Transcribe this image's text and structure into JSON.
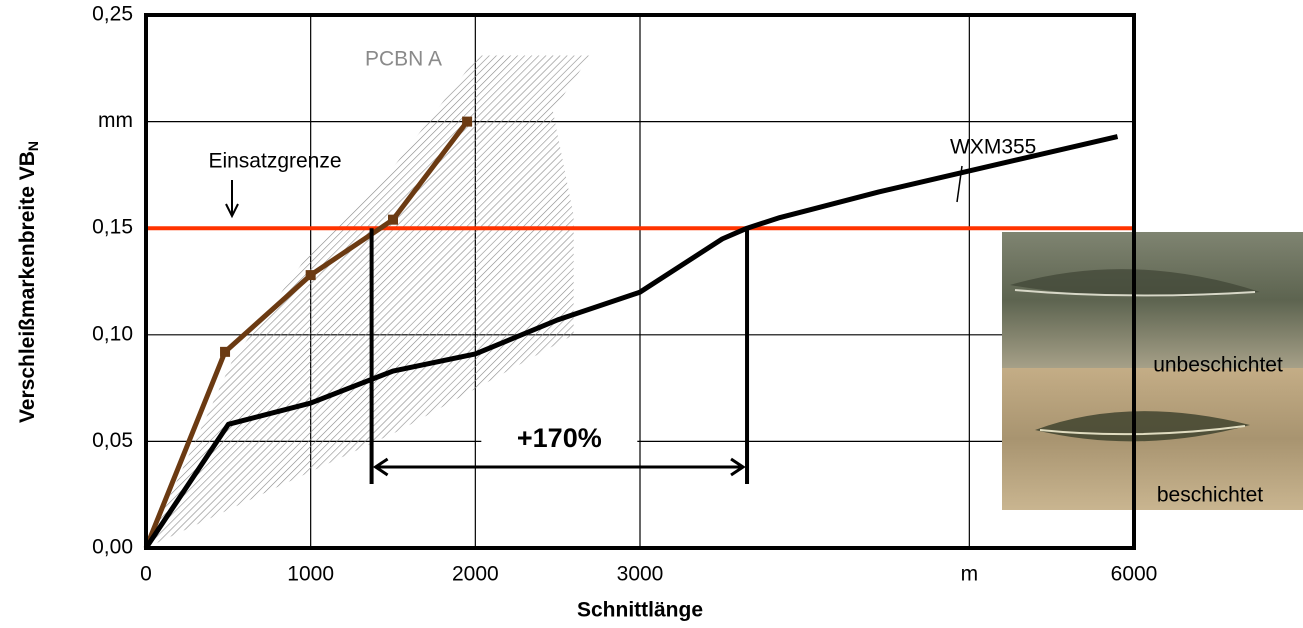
{
  "chart_data": {
    "type": "line",
    "xlabel": "Schnittlänge",
    "ylabel": "Verschleißmarkenbreite VB",
    "ylabel_sub": "N",
    "xlim": [
      0,
      6000
    ],
    "ylim": [
      0,
      0.25
    ],
    "xticks": [
      0,
      1000,
      2000,
      3000,
      {
        "value": 5000,
        "label": "m"
      },
      6000
    ],
    "yticks": [
      {
        "value": 0,
        "label": "0,00"
      },
      {
        "value": 0.05,
        "label": "0,05"
      },
      {
        "value": 0.1,
        "label": "0,10"
      },
      {
        "value": 0.15,
        "label": "0,15"
      },
      {
        "value": 0.2,
        "label": "mm"
      },
      {
        "value": 0.25,
        "label": "0,25"
      }
    ],
    "grid": true,
    "series": [
      {
        "name": "PCBN A",
        "color": "#6b3a12",
        "markers": true,
        "x": [
          0,
          480,
          1000,
          1500,
          1950
        ],
        "values": [
          0,
          0.092,
          0.128,
          0.154,
          0.2
        ]
      },
      {
        "name": "WXM355",
        "color": "#000000",
        "markers": false,
        "x": [
          0,
          500,
          1000,
          1500,
          2000,
          2500,
          3000,
          3500,
          3650,
          3850,
          4000,
          4450,
          5900
        ],
        "values": [
          0,
          0.058,
          0.068,
          0.083,
          0.091,
          0.107,
          0.12,
          0.145,
          0.15,
          0.155,
          0.158,
          0.167,
          0.193
        ]
      }
    ],
    "band": {
      "color": "#8a8a8a",
      "x": [
        0,
        525,
        980,
        1486,
        2016,
        2698,
        2471,
        2597,
        2597,
        1536
      ],
      "values": [
        0,
        0.088,
        0.137,
        0.177,
        0.231,
        0.231,
        0.205,
        0.156,
        0.1,
        0.055
      ]
    },
    "limit": {
      "label": "Einsatzgrenze",
      "value": 0.15,
      "color": "#ff3300"
    },
    "improvement": {
      "label": "+170%",
      "x_start": 1370,
      "x_end": 3650,
      "arrow_y": 0.038,
      "drop_to": 0.03
    },
    "inset_labels": [
      "unbeschichtet",
      "beschichtet"
    ]
  }
}
